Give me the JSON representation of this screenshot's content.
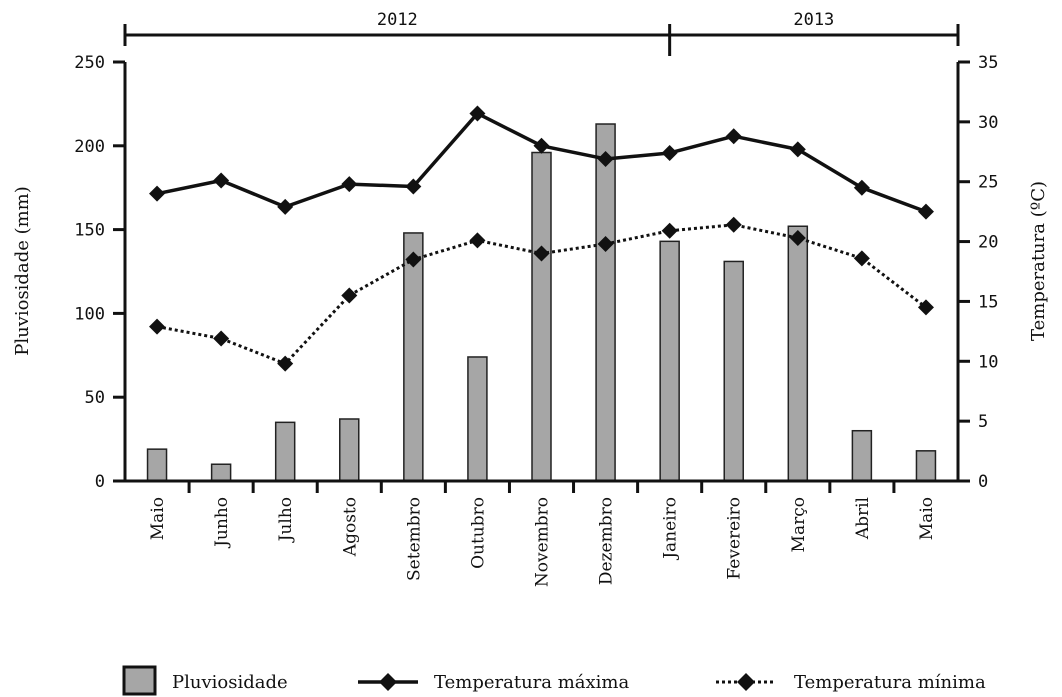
{
  "chart_data": {
    "type": "bar+line",
    "years": [
      {
        "label": "2012",
        "from": 0,
        "to": 8
      },
      {
        "label": "2013",
        "from": 8,
        "to": 12
      }
    ],
    "categories": [
      "Maio",
      "Junho",
      "Julho",
      "Agosto",
      "Setembro",
      "Outubro",
      "Novembro",
      "Dezembro",
      "Janeiro",
      "Fevereiro",
      "Março",
      "Abril",
      "Maio"
    ],
    "series": [
      {
        "name": "Pluviosidade",
        "kind": "bar",
        "axis": "left",
        "color": "#a6a6a6",
        "values": [
          19,
          10,
          35,
          37,
          148,
          74,
          196,
          213,
          143,
          131,
          152,
          30,
          18
        ]
      },
      {
        "name": "Temperatura máxima",
        "kind": "line",
        "axis": "right",
        "style": "solid",
        "color": "#111111",
        "values": [
          24.0,
          25.1,
          22.9,
          24.8,
          24.6,
          30.7,
          28.0,
          26.9,
          27.4,
          28.8,
          27.7,
          24.5,
          22.5
        ]
      },
      {
        "name": "Temperatura mínima",
        "kind": "line",
        "axis": "right",
        "style": "dotted",
        "color": "#111111",
        "values": [
          12.9,
          11.9,
          9.8,
          15.5,
          18.5,
          20.1,
          19.0,
          19.8,
          20.9,
          21.4,
          20.3,
          18.6,
          14.5
        ]
      }
    ],
    "y_left": {
      "label": "Pluviosidade (mm)",
      "min": 0,
      "max": 250,
      "ticks": [
        0,
        50,
        100,
        150,
        200,
        250
      ]
    },
    "y_right": {
      "label": "Temperatura (ºC)",
      "min": 0,
      "max": 35,
      "ticks": [
        0,
        5,
        10,
        15,
        20,
        25,
        30,
        35
      ]
    },
    "legend_position": "bottom",
    "grid": false
  }
}
